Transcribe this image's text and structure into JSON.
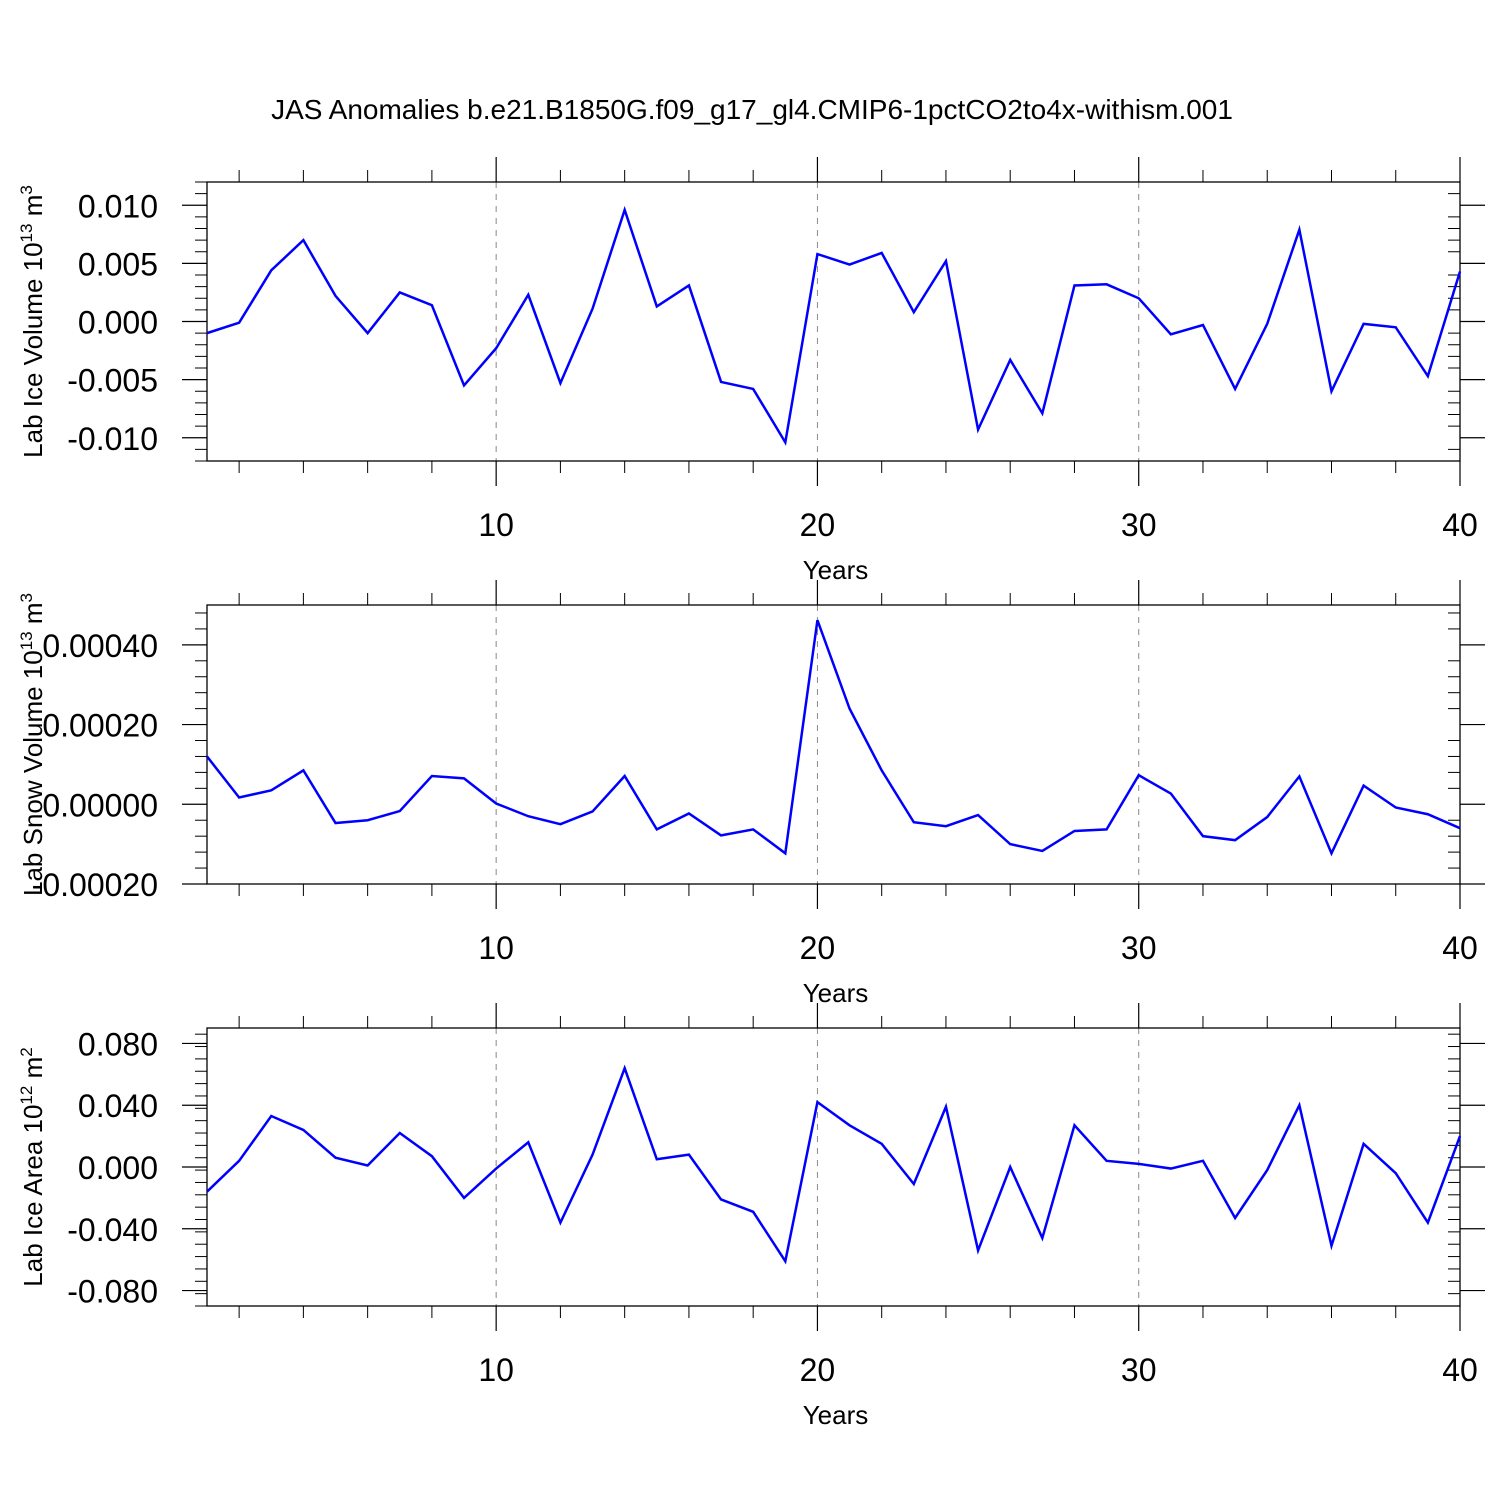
{
  "title": "JAS Anomalies b.e21.B1850G.f09_g17_gl4.CMIP6-1pctCO2to4x-withism.001",
  "colors": {
    "line": "#0000ff",
    "grid": "#888888",
    "axis": "#000000"
  },
  "chart_data": [
    {
      "type": "line",
      "ylabel_main": "Lab Ice Volume 10",
      "ylabel_exp": "13",
      "ylabel_unit": " m",
      "ylabel_unit_exp": "3",
      "xlabel": "Years",
      "xlim": [
        1,
        40
      ],
      "ylim": [
        -0.012,
        0.012
      ],
      "xticks": [
        10,
        20,
        30,
        40
      ],
      "xtick_labels": [
        "10",
        "20",
        "30",
        "40"
      ],
      "yticks": [
        -0.01,
        -0.005,
        0.0,
        0.005,
        0.01
      ],
      "ytick_labels": [
        "-0.010",
        "-0.005",
        "0.000",
        "0.005",
        "0.010"
      ],
      "grid_x": true,
      "x": [
        1,
        2,
        3,
        4,
        5,
        6,
        7,
        8,
        9,
        10,
        11,
        12,
        13,
        14,
        15,
        16,
        17,
        18,
        19,
        20,
        21,
        22,
        23,
        24,
        25,
        26,
        27,
        28,
        29,
        30,
        31,
        32,
        33,
        34,
        35,
        36,
        37,
        38,
        39,
        40
      ],
      "values": [
        -0.001,
        -0.0001,
        0.0044,
        0.007,
        0.0022,
        -0.001,
        0.0025,
        0.0014,
        -0.0055,
        -0.0023,
        0.0023,
        -0.0053,
        0.0011,
        0.0096,
        0.0013,
        0.0031,
        -0.0052,
        -0.0058,
        -0.0104,
        0.0058,
        0.0049,
        0.0059,
        0.0008,
        0.0052,
        -0.0093,
        -0.0033,
        -0.0079,
        0.0031,
        0.0032,
        0.002,
        -0.0011,
        -0.0003,
        -0.0058,
        -0.0002,
        0.0079,
        -0.006,
        -0.0002,
        -0.0005,
        -0.0047,
        0.0043
      ]
    },
    {
      "type": "line",
      "ylabel_main": "Lab Snow Volume 10",
      "ylabel_exp": "13",
      "ylabel_unit": " m",
      "ylabel_unit_exp": "3",
      "xlabel": "Years",
      "xlim": [
        1,
        40
      ],
      "ylim": [
        -0.0002,
        0.0005
      ],
      "xticks": [
        10,
        20,
        30,
        40
      ],
      "xtick_labels": [
        "10",
        "20",
        "30",
        "40"
      ],
      "yticks": [
        -0.0002,
        0.0,
        0.0002,
        0.0004
      ],
      "ytick_labels": [
        "-0.00020",
        "0.00000",
        "0.00020",
        "0.00040"
      ],
      "grid_x": true,
      "x": [
        1,
        2,
        3,
        4,
        5,
        6,
        7,
        8,
        9,
        10,
        11,
        12,
        13,
        14,
        15,
        16,
        17,
        18,
        19,
        20,
        21,
        22,
        23,
        24,
        25,
        26,
        27,
        28,
        29,
        30,
        31,
        32,
        33,
        34,
        35,
        36,
        37,
        38,
        39,
        40
      ],
      "values": [
        0.00012,
        1.7e-05,
        3.5e-05,
        8.5e-05,
        -4.7e-05,
        -4e-05,
        -1.7e-05,
        7.1e-05,
        6.5e-05,
        2e-06,
        -3e-05,
        -5e-05,
        -1.8e-05,
        7.1e-05,
        -6.3e-05,
        -2.3e-05,
        -7.8e-05,
        -6.3e-05,
        -0.000123,
        0.000462,
        0.00024,
        8.5e-05,
        -4.5e-05,
        -5.5e-05,
        -2.7e-05,
        -0.0001,
        -0.000117,
        -6.7e-05,
        -6.3e-05,
        7.3e-05,
        2.7e-05,
        -8e-05,
        -9e-05,
        -3.2e-05,
        7e-05,
        -0.000123,
        4.7e-05,
        -8e-06,
        -2.5e-05,
        -6e-05
      ]
    },
    {
      "type": "line",
      "ylabel_main": "Lab Ice Area 10",
      "ylabel_exp": "12",
      "ylabel_unit": " m",
      "ylabel_unit_exp": "2",
      "xlabel": "Years",
      "xlim": [
        1,
        40
      ],
      "ylim": [
        -0.09,
        0.09
      ],
      "xticks": [
        10,
        20,
        30,
        40
      ],
      "xtick_labels": [
        "10",
        "20",
        "30",
        "40"
      ],
      "yticks": [
        -0.08,
        -0.04,
        0.0,
        0.04,
        0.08
      ],
      "ytick_labels": [
        "-0.080",
        "-0.040",
        "0.000",
        "0.040",
        "0.080"
      ],
      "grid_x": true,
      "x": [
        1,
        2,
        3,
        4,
        5,
        6,
        7,
        8,
        9,
        10,
        11,
        12,
        13,
        14,
        15,
        16,
        17,
        18,
        19,
        20,
        21,
        22,
        23,
        24,
        25,
        26,
        27,
        28,
        29,
        30,
        31,
        32,
        33,
        34,
        35,
        36,
        37,
        38,
        39,
        40
      ],
      "values": [
        -0.016,
        0.004,
        0.033,
        0.024,
        0.006,
        0.001,
        0.022,
        0.007,
        -0.02,
        -0.001,
        0.016,
        -0.036,
        0.008,
        0.064,
        0.005,
        0.008,
        -0.021,
        -0.029,
        -0.061,
        0.042,
        0.027,
        0.015,
        -0.011,
        0.039,
        -0.054,
        0.0,
        -0.046,
        0.027,
        0.004,
        0.002,
        -0.001,
        0.004,
        -0.033,
        -0.002,
        0.04,
        -0.051,
        0.015,
        -0.004,
        -0.036,
        0.02
      ]
    }
  ]
}
